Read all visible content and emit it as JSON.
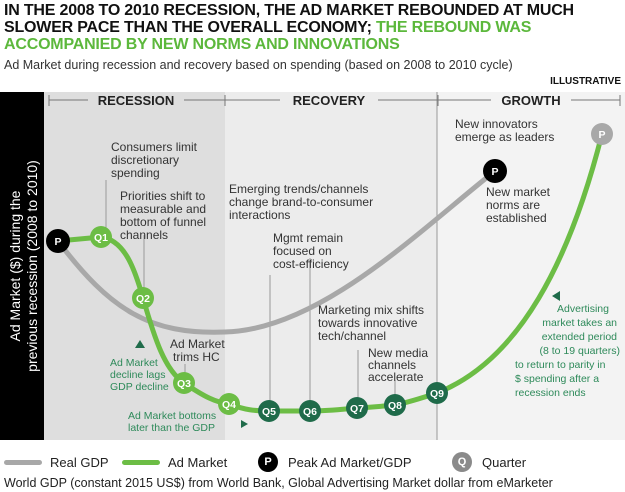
{
  "header": {
    "title_black": "IN THE 2008 TO 2010 RECESSION, THE AD MARKET REBOUNDED AT MUCH SLOWER PACE THAN THE OVERALL ECONOMY;",
    "title_green": "THE REBOUND WAS ACCOMPANIED BY NEW NORMS AND INNOVATIONS",
    "subtitle": "Ad Market during recession and recovery based on spending (based on 2008 to 2010 cycle)",
    "tag": "ILLUSTRATIVE"
  },
  "y_axis": {
    "line1": "Ad Market ($) during the",
    "line2": "previous recession (2008  to 2010)"
  },
  "phases": [
    "RECESSION",
    "RECOVERY",
    "GROWTH"
  ],
  "markers": {
    "peak": "P",
    "quarters": [
      "Q1",
      "Q2",
      "Q3",
      "Q4",
      "Q5",
      "Q6",
      "Q7",
      "Q8",
      "Q9"
    ]
  },
  "annotations": {
    "consumers": [
      "Consumers limit",
      "discretionary",
      "spending"
    ],
    "priorities": [
      "Priorities shift to",
      "measurable and",
      "bottom of funnel",
      "channels"
    ],
    "emerging": [
      "Emerging trends/channels",
      "change  brand-to-consumer",
      "interactions"
    ],
    "mgmt": [
      "Mgmt remain",
      "focused on",
      "cost-efficiency"
    ],
    "mix": [
      "Marketing mix shifts",
      "towards innovative",
      "tech/channel"
    ],
    "media": [
      "New media",
      "channels",
      "accelerate"
    ],
    "trims": [
      "Ad Market",
      "trims HC"
    ],
    "innovators": [
      "New innovators",
      "emerge as leaders"
    ],
    "norms": [
      "New market",
      "norms are",
      "established"
    ],
    "lags": [
      "Ad Market",
      "decline lags",
      "GDP decline"
    ],
    "bottoms": [
      "Ad Market bottoms",
      "later than the GDP"
    ],
    "extended": [
      "Advertising",
      "market takes an",
      "extended period",
      "(8 to 19 quarters)",
      "to return to parity in",
      "$ spending after a",
      "recession ends"
    ]
  },
  "legend": {
    "gdp": "Real GDP",
    "ad": "Ad Market",
    "peak_symbol": "P",
    "peak": "Peak Ad Market/GDP",
    "quarter_symbol": "Q",
    "quarter": "Quarter"
  },
  "colors": {
    "light_green": "#6cbd45",
    "dark_green": "#1f6b4a",
    "gray": "#a8a8a8"
  },
  "footer": "World GDP (constant 2015 US$) from World Bank, Global Advertising Market dollar from eMarketer"
}
